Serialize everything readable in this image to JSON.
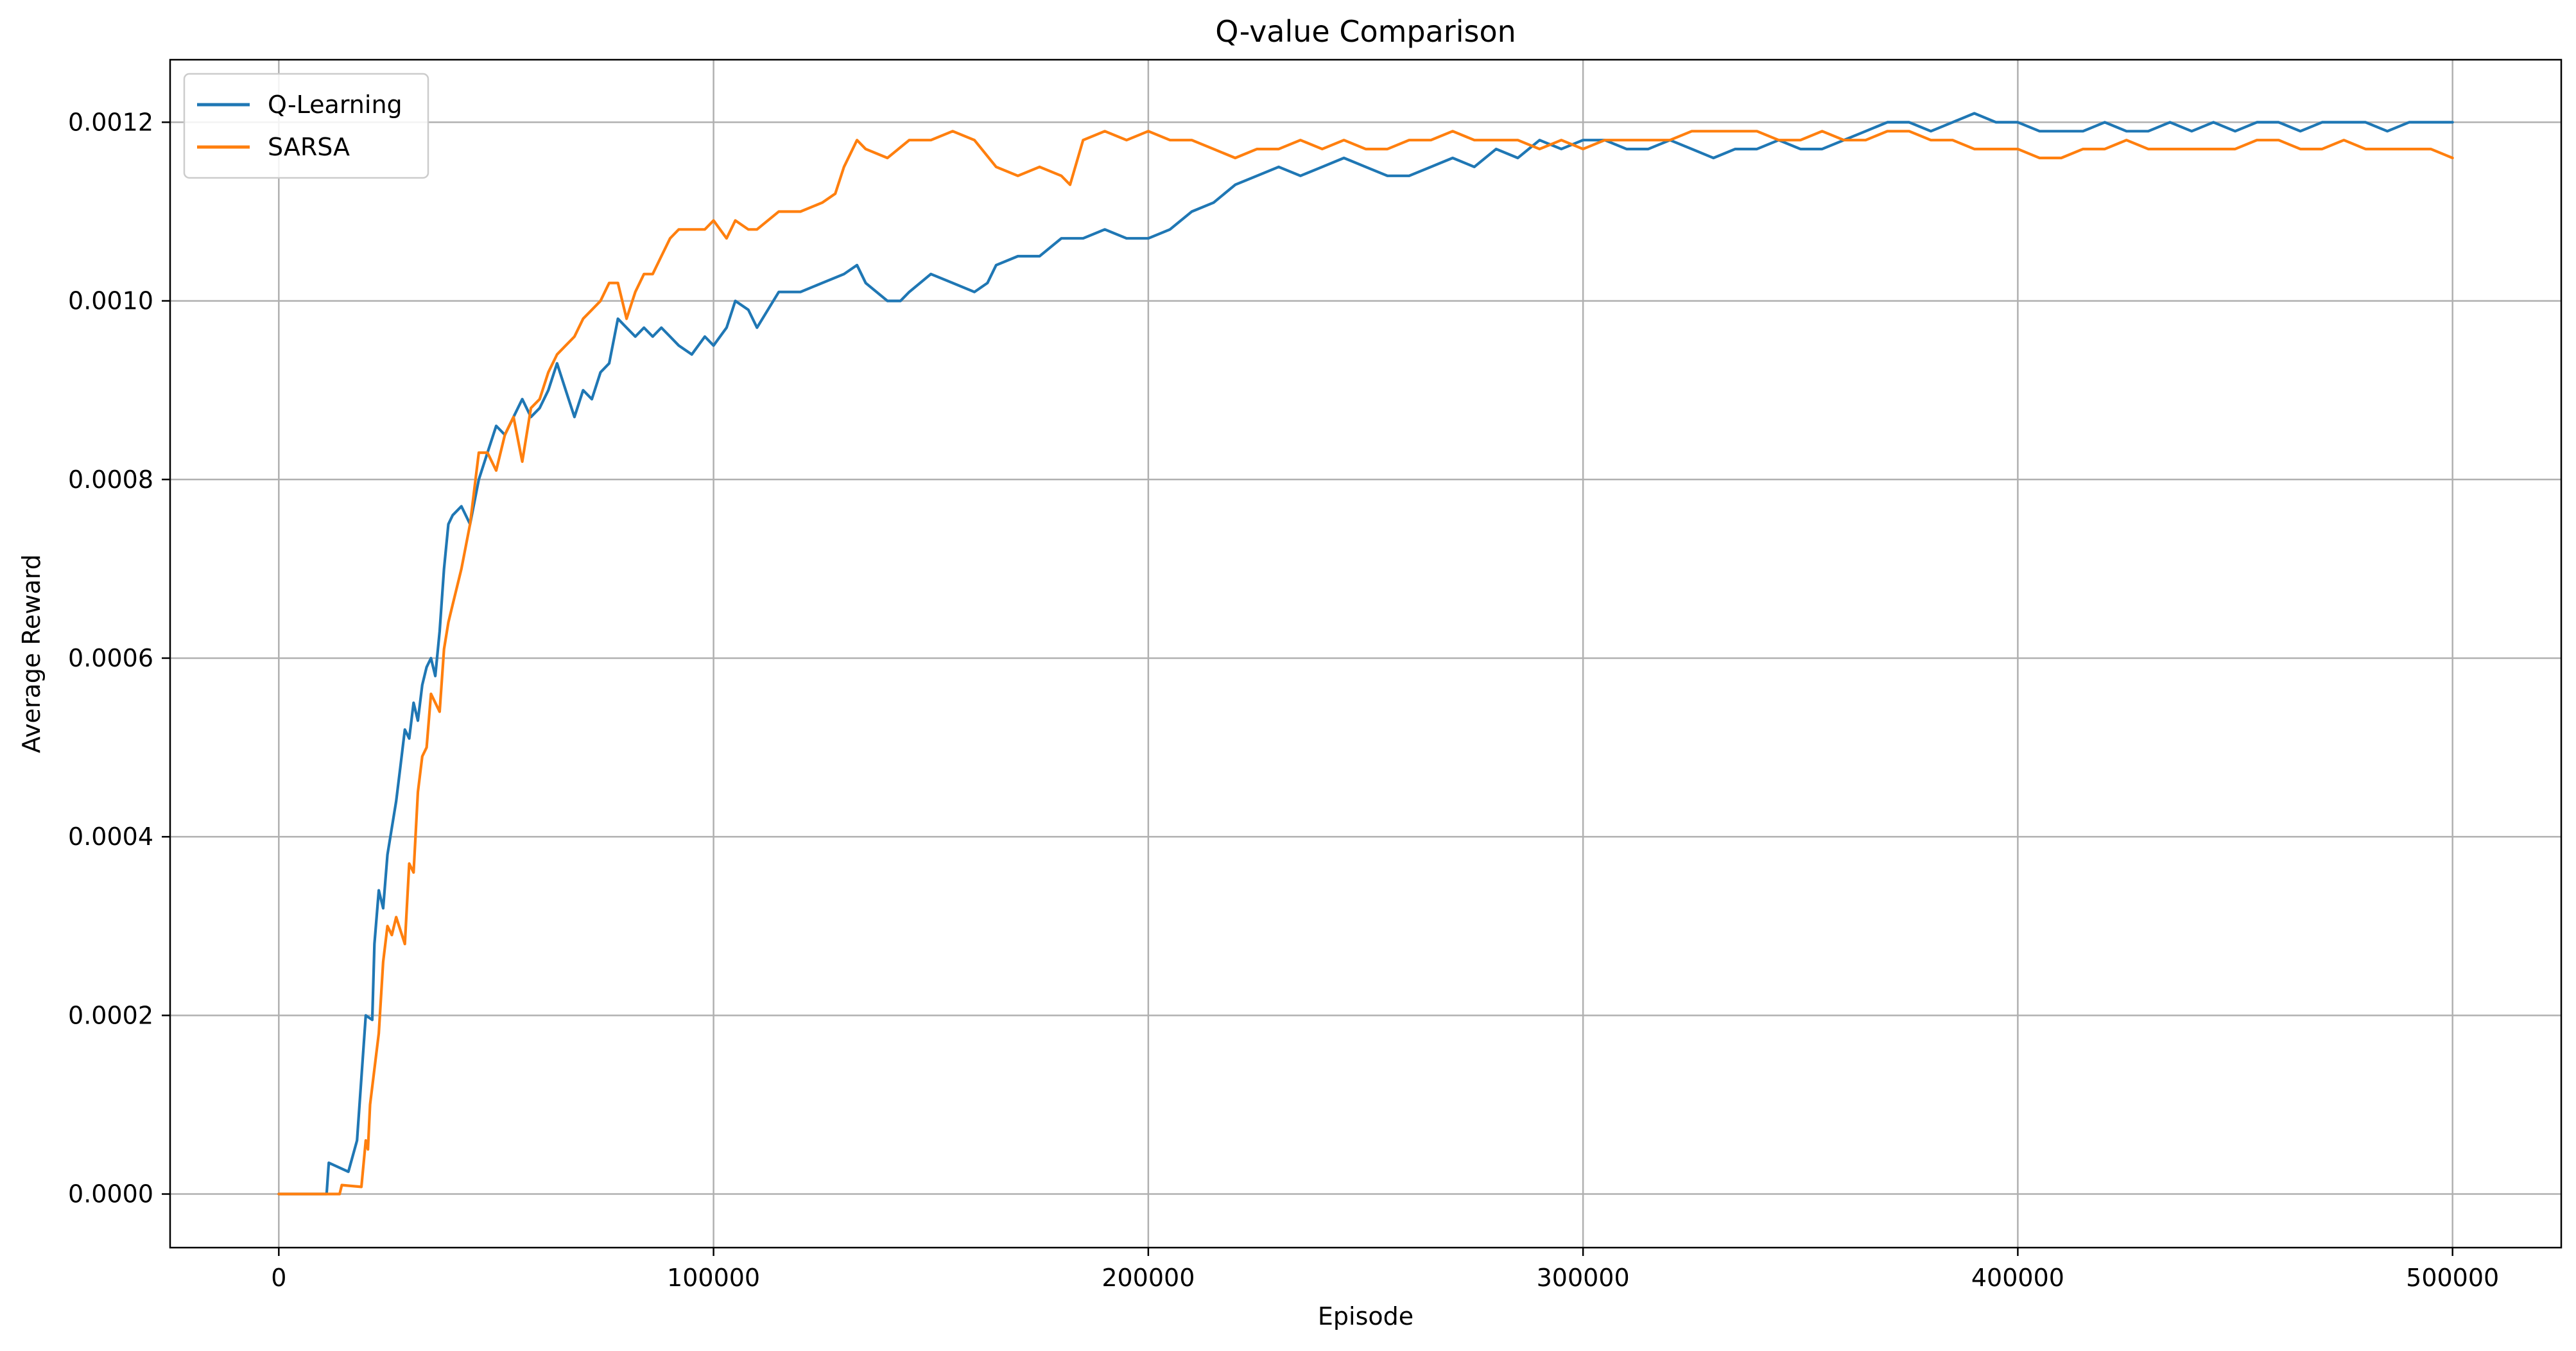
{
  "chart_data": {
    "type": "line",
    "title": "Q-value Comparison",
    "xlabel": "Episode",
    "ylabel": "Average Reward",
    "xlim": [
      -25000,
      525000
    ],
    "ylim": [
      -6e-05,
      0.00127
    ],
    "xticks": [
      0,
      100000,
      200000,
      300000,
      400000,
      500000
    ],
    "xtick_labels": [
      "0",
      "100000",
      "200000",
      "300000",
      "400000",
      "500000"
    ],
    "yticks": [
      0.0,
      0.0002,
      0.0004,
      0.0006,
      0.0008,
      0.001,
      0.0012
    ],
    "ytick_labels": [
      "0.0000",
      "0.0002",
      "0.0004",
      "0.0006",
      "0.0008",
      "0.0010",
      "0.0012"
    ],
    "grid": true,
    "legend_position": "top-left",
    "series": [
      {
        "name": "Q-Learning",
        "color": "#1f77b4",
        "x": [
          0,
          5000,
          11000,
          11500,
          16000,
          18000,
          19000,
          20000,
          21500,
          22000,
          23000,
          24000,
          25000,
          27000,
          28000,
          29000,
          30000,
          31000,
          32000,
          33000,
          34000,
          35000,
          36000,
          37000,
          38000,
          39000,
          40000,
          42000,
          44000,
          46000,
          48000,
          50000,
          52000,
          54000,
          56000,
          58000,
          60000,
          62000,
          64000,
          66000,
          68000,
          70000,
          72000,
          74000,
          76000,
          78000,
          80000,
          82000,
          84000,
          86000,
          88000,
          90000,
          92000,
          95000,
          98000,
          100000,
          103000,
          105000,
          108000,
          110000,
          115000,
          120000,
          125000,
          130000,
          133000,
          135000,
          140000,
          143000,
          145000,
          150000,
          155000,
          160000,
          163000,
          165000,
          170000,
          175000,
          180000,
          185000,
          190000,
          195000,
          200000,
          205000,
          210000,
          215000,
          220000,
          225000,
          230000,
          235000,
          240000,
          245000,
          250000,
          255000,
          260000,
          265000,
          270000,
          275000,
          280000,
          285000,
          290000,
          295000,
          300000,
          305000,
          310000,
          315000,
          320000,
          325000,
          330000,
          335000,
          340000,
          345000,
          350000,
          355000,
          360000,
          365000,
          370000,
          375000,
          380000,
          385000,
          390000,
          395000,
          400000,
          405000,
          410000,
          415000,
          420000,
          425000,
          430000,
          435000,
          440000,
          445000,
          450000,
          455000,
          460000,
          465000,
          470000,
          475000,
          480000,
          485000,
          490000,
          495000,
          500000
        ],
        "y": [
          0.0,
          0.0,
          0.0,
          3.5e-05,
          2.5e-05,
          6e-05,
          0.00013,
          0.0002,
          0.000195,
          0.00028,
          0.00034,
          0.00032,
          0.00038,
          0.00044,
          0.00048,
          0.00052,
          0.00051,
          0.00055,
          0.00053,
          0.00057,
          0.00059,
          0.0006,
          0.00058,
          0.00063,
          0.0007,
          0.00075,
          0.00076,
          0.00077,
          0.00075,
          0.0008,
          0.00083,
          0.00086,
          0.00085,
          0.00087,
          0.00089,
          0.00087,
          0.00088,
          0.0009,
          0.00093,
          0.0009,
          0.00087,
          0.0009,
          0.00089,
          0.00092,
          0.00093,
          0.00098,
          0.00097,
          0.00096,
          0.00097,
          0.00096,
          0.00097,
          0.00096,
          0.00095,
          0.00094,
          0.00096,
          0.00095,
          0.00097,
          0.001,
          0.00099,
          0.00097,
          0.00101,
          0.00101,
          0.00102,
          0.00103,
          0.00104,
          0.00102,
          0.001,
          0.001,
          0.00101,
          0.00103,
          0.00102,
          0.00101,
          0.00102,
          0.00104,
          0.00105,
          0.00105,
          0.00107,
          0.00107,
          0.00108,
          0.00107,
          0.00107,
          0.00108,
          0.0011,
          0.00111,
          0.00113,
          0.00114,
          0.00115,
          0.00114,
          0.00115,
          0.00116,
          0.00115,
          0.00114,
          0.00114,
          0.00115,
          0.00116,
          0.00115,
          0.00117,
          0.00116,
          0.00118,
          0.00117,
          0.00118,
          0.00118,
          0.00117,
          0.00117,
          0.00118,
          0.00117,
          0.00116,
          0.00117,
          0.00117,
          0.00118,
          0.00117,
          0.00117,
          0.00118,
          0.00119,
          0.0012,
          0.0012,
          0.00119,
          0.0012,
          0.00121,
          0.0012,
          0.0012,
          0.00119,
          0.00119,
          0.00119,
          0.0012,
          0.00119,
          0.00119,
          0.0012,
          0.00119,
          0.0012,
          0.00119,
          0.0012,
          0.0012,
          0.00119,
          0.0012,
          0.0012,
          0.0012,
          0.00119,
          0.0012,
          0.0012,
          0.0012
        ]
      },
      {
        "name": "SARSA",
        "color": "#ff7f0e",
        "x": [
          0,
          10000,
          14000,
          14500,
          19000,
          20000,
          20500,
          21000,
          22000,
          23000,
          24000,
          25000,
          26000,
          27000,
          29000,
          30000,
          31000,
          32000,
          33000,
          34000,
          35000,
          37000,
          38000,
          39000,
          40000,
          41000,
          42000,
          44000,
          46000,
          48000,
          50000,
          52000,
          54000,
          56000,
          58000,
          60000,
          62000,
          64000,
          66000,
          68000,
          70000,
          72000,
          74000,
          76000,
          78000,
          80000,
          82000,
          84000,
          86000,
          88000,
          90000,
          92000,
          95000,
          98000,
          100000,
          103000,
          105000,
          108000,
          110000,
          115000,
          120000,
          125000,
          128000,
          130000,
          133000,
          135000,
          140000,
          145000,
          150000,
          155000,
          160000,
          165000,
          170000,
          175000,
          180000,
          182000,
          185000,
          190000,
          195000,
          200000,
          205000,
          210000,
          215000,
          220000,
          225000,
          230000,
          235000,
          240000,
          245000,
          250000,
          255000,
          260000,
          265000,
          270000,
          275000,
          280000,
          285000,
          290000,
          295000,
          300000,
          305000,
          310000,
          315000,
          320000,
          325000,
          330000,
          335000,
          340000,
          345000,
          350000,
          355000,
          360000,
          365000,
          370000,
          375000,
          380000,
          385000,
          390000,
          395000,
          400000,
          405000,
          410000,
          415000,
          420000,
          425000,
          430000,
          435000,
          440000,
          445000,
          450000,
          455000,
          460000,
          465000,
          470000,
          475000,
          480000,
          485000,
          490000,
          495000,
          500000
        ],
        "y": [
          0.0,
          0.0,
          0.0,
          1e-05,
          8e-06,
          6e-05,
          5e-05,
          0.0001,
          0.00014,
          0.00018,
          0.00026,
          0.0003,
          0.00029,
          0.00031,
          0.00028,
          0.00037,
          0.00036,
          0.00045,
          0.00049,
          0.0005,
          0.00056,
          0.00054,
          0.00061,
          0.00064,
          0.00066,
          0.00068,
          0.0007,
          0.00075,
          0.00083,
          0.00083,
          0.00081,
          0.00085,
          0.00087,
          0.00082,
          0.00088,
          0.00089,
          0.00092,
          0.00094,
          0.00095,
          0.00096,
          0.00098,
          0.00099,
          0.001,
          0.00102,
          0.00102,
          0.00098,
          0.00101,
          0.00103,
          0.00103,
          0.00105,
          0.00107,
          0.00108,
          0.00108,
          0.00108,
          0.00109,
          0.00107,
          0.00109,
          0.00108,
          0.00108,
          0.0011,
          0.0011,
          0.00111,
          0.00112,
          0.00115,
          0.00118,
          0.00117,
          0.00116,
          0.00118,
          0.00118,
          0.00119,
          0.00118,
          0.00115,
          0.00114,
          0.00115,
          0.00114,
          0.00113,
          0.00118,
          0.00119,
          0.00118,
          0.00119,
          0.00118,
          0.00118,
          0.00117,
          0.00116,
          0.00117,
          0.00117,
          0.00118,
          0.00117,
          0.00118,
          0.00117,
          0.00117,
          0.00118,
          0.00118,
          0.00119,
          0.00118,
          0.00118,
          0.00118,
          0.00117,
          0.00118,
          0.00117,
          0.00118,
          0.00118,
          0.00118,
          0.00118,
          0.00119,
          0.00119,
          0.00119,
          0.00119,
          0.00118,
          0.00118,
          0.00119,
          0.00118,
          0.00118,
          0.00119,
          0.00119,
          0.00118,
          0.00118,
          0.00117,
          0.00117,
          0.00117,
          0.00116,
          0.00116,
          0.00117,
          0.00117,
          0.00118,
          0.00117,
          0.00117,
          0.00117,
          0.00117,
          0.00117,
          0.00118,
          0.00118,
          0.00117,
          0.00117,
          0.00118,
          0.00117,
          0.00117,
          0.00117,
          0.00117,
          0.00116
        ]
      }
    ]
  }
}
